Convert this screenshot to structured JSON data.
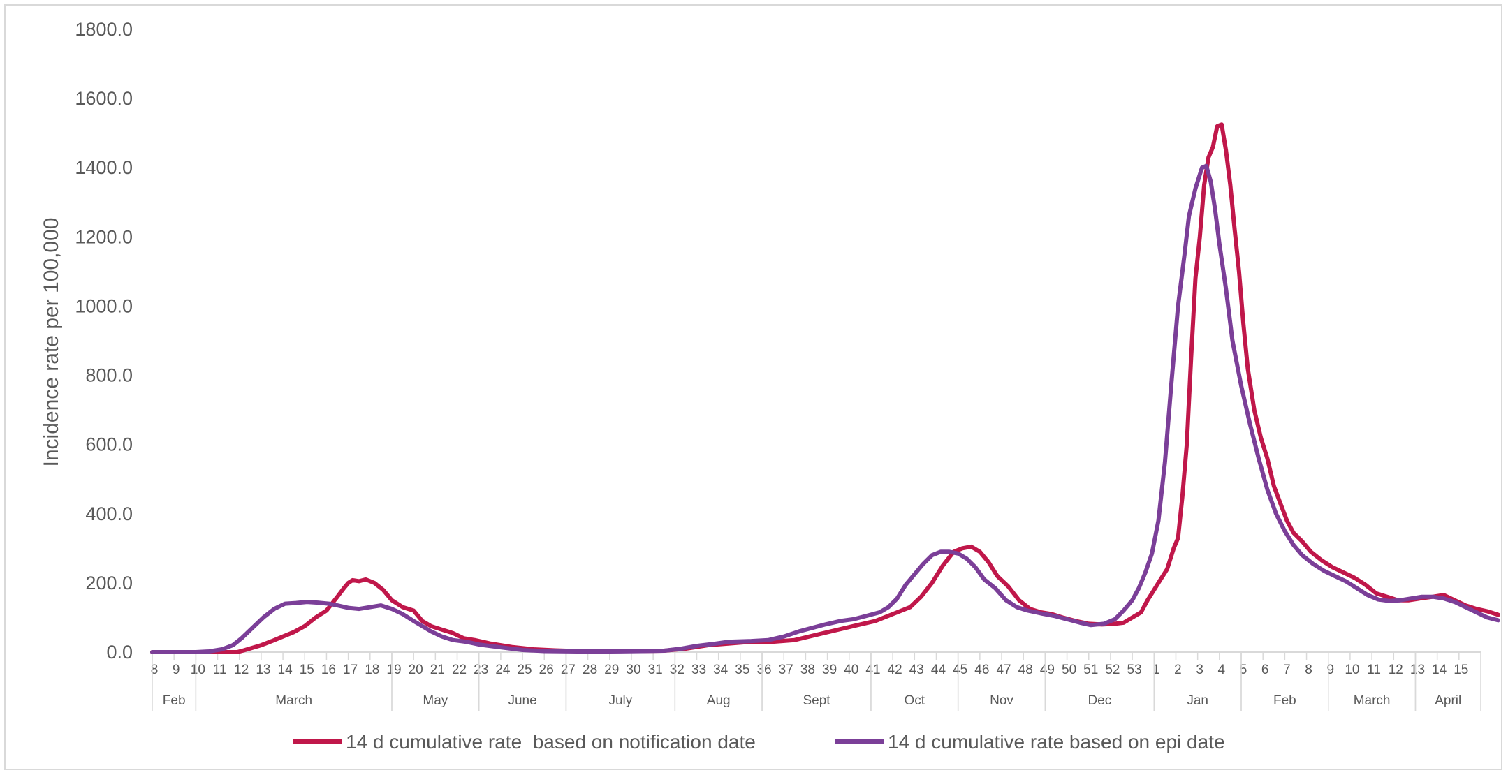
{
  "chart_data": {
    "type": "line",
    "title": "",
    "ylabel": "Incidence rate per 100,000",
    "xlabel": "",
    "ylim": [
      0,
      1800
    ],
    "yticks": [
      "0.0",
      "200.0",
      "400.0",
      "600.0",
      "800.0",
      "1000.0",
      "1200.0",
      "1400.0",
      "1600.0",
      "1800.0"
    ],
    "grid": false,
    "legend_position": "bottom",
    "x_weeks": [
      "8",
      "9",
      "10",
      "11",
      "12",
      "13",
      "14",
      "15",
      "16",
      "17",
      "18",
      "19",
      "20",
      "21",
      "22",
      "23",
      "24",
      "25",
      "26",
      "27",
      "28",
      "29",
      "30",
      "31",
      "32",
      "33",
      "34",
      "35",
      "36",
      "37",
      "38",
      "39",
      "40",
      "41",
      "42",
      "43",
      "44",
      "45",
      "46",
      "47",
      "48",
      "49",
      "50",
      "51",
      "52",
      "53",
      "1",
      "2",
      "3",
      "4",
      "5",
      "6",
      "7",
      "8",
      "9",
      "10",
      "11",
      "12",
      "13",
      "14",
      "15"
    ],
    "x_months": [
      {
        "label": "Feb",
        "start": 0,
        "end": 2
      },
      {
        "label": "March",
        "start": 2,
        "end": 11
      },
      {
        "label": "May",
        "start": 11,
        "end": 15
      },
      {
        "label": "June",
        "start": 15,
        "end": 19
      },
      {
        "label": "July",
        "start": 19,
        "end": 24
      },
      {
        "label": "Aug",
        "start": 24,
        "end": 28
      },
      {
        "label": "Sept",
        "start": 28,
        "end": 33
      },
      {
        "label": "Oct",
        "start": 33,
        "end": 37
      },
      {
        "label": "Nov",
        "start": 37,
        "end": 41
      },
      {
        "label": "Dec",
        "start": 41,
        "end": 46
      },
      {
        "label": "Jan",
        "start": 46,
        "end": 50
      },
      {
        "label": "Feb",
        "start": 50,
        "end": 54
      },
      {
        "label": "March",
        "start": 54,
        "end": 58
      },
      {
        "label": "April",
        "start": 58,
        "end": 61
      }
    ],
    "series": [
      {
        "name": "14 d cumulative rate  based on notification date",
        "color": "#c0174a",
        "points": [
          [
            0,
            0
          ],
          [
            2,
            0
          ],
          [
            3.9,
            0
          ],
          [
            4.2,
            5
          ],
          [
            5,
            20
          ],
          [
            5.5,
            32
          ],
          [
            6,
            45
          ],
          [
            6.5,
            58
          ],
          [
            7,
            75
          ],
          [
            7.5,
            100
          ],
          [
            8,
            120
          ],
          [
            8.5,
            160
          ],
          [
            8.8,
            185
          ],
          [
            9,
            200
          ],
          [
            9.2,
            208
          ],
          [
            9.5,
            205
          ],
          [
            9.8,
            210
          ],
          [
            10.2,
            200
          ],
          [
            10.6,
            180
          ],
          [
            11,
            150
          ],
          [
            11.5,
            130
          ],
          [
            12,
            120
          ],
          [
            12.4,
            90
          ],
          [
            12.8,
            75
          ],
          [
            13.3,
            65
          ],
          [
            13.8,
            55
          ],
          [
            14.3,
            40
          ],
          [
            14.8,
            35
          ],
          [
            15.5,
            25
          ],
          [
            16.5,
            15
          ],
          [
            17.5,
            8
          ],
          [
            18.5,
            5
          ],
          [
            19.5,
            3
          ],
          [
            20.5,
            3
          ],
          [
            22,
            3
          ],
          [
            23.5,
            4
          ],
          [
            24.5,
            10
          ],
          [
            25.5,
            20
          ],
          [
            26.5,
            25
          ],
          [
            27.5,
            30
          ],
          [
            28.5,
            30
          ],
          [
            29.5,
            35
          ],
          [
            30.5,
            50
          ],
          [
            31.5,
            65
          ],
          [
            32.5,
            80
          ],
          [
            33.2,
            90
          ],
          [
            34,
            110
          ],
          [
            34.8,
            130
          ],
          [
            35.3,
            160
          ],
          [
            35.8,
            200
          ],
          [
            36.3,
            250
          ],
          [
            36.8,
            290
          ],
          [
            37.2,
            300
          ],
          [
            37.6,
            305
          ],
          [
            38,
            290
          ],
          [
            38.4,
            260
          ],
          [
            38.8,
            220
          ],
          [
            39.3,
            190
          ],
          [
            39.8,
            150
          ],
          [
            40.3,
            125
          ],
          [
            40.8,
            115
          ],
          [
            41.3,
            110
          ],
          [
            41.8,
            100
          ],
          [
            42.4,
            90
          ],
          [
            43,
            82
          ],
          [
            43.6,
            80
          ],
          [
            44.2,
            82
          ],
          [
            44.6,
            85
          ],
          [
            45,
            100
          ],
          [
            45.4,
            115
          ],
          [
            45.7,
            150
          ],
          [
            46,
            180
          ],
          [
            46.3,
            210
          ],
          [
            46.6,
            240
          ],
          [
            46.9,
            300
          ],
          [
            47.1,
            330
          ],
          [
            47.3,
            450
          ],
          [
            47.5,
            600
          ],
          [
            47.7,
            850
          ],
          [
            47.9,
            1080
          ],
          [
            48.1,
            1200
          ],
          [
            48.3,
            1350
          ],
          [
            48.5,
            1430
          ],
          [
            48.7,
            1460
          ],
          [
            48.9,
            1520
          ],
          [
            49.1,
            1525
          ],
          [
            49.3,
            1450
          ],
          [
            49.5,
            1350
          ],
          [
            49.7,
            1220
          ],
          [
            49.9,
            1100
          ],
          [
            50.1,
            950
          ],
          [
            50.3,
            820
          ],
          [
            50.6,
            700
          ],
          [
            50.9,
            620
          ],
          [
            51.2,
            560
          ],
          [
            51.5,
            480
          ],
          [
            51.8,
            430
          ],
          [
            52.1,
            380
          ],
          [
            52.4,
            345
          ],
          [
            52.8,
            320
          ],
          [
            53.2,
            290
          ],
          [
            53.7,
            265
          ],
          [
            54.2,
            245
          ],
          [
            54.7,
            230
          ],
          [
            55.2,
            215
          ],
          [
            55.7,
            195
          ],
          [
            56.2,
            170
          ],
          [
            56.7,
            160
          ],
          [
            57.2,
            150
          ],
          [
            57.7,
            150
          ],
          [
            58.2,
            155
          ],
          [
            58.8,
            160
          ],
          [
            59.3,
            165
          ],
          [
            59.8,
            150
          ],
          [
            60.3,
            135
          ],
          [
            60.8,
            125
          ],
          [
            61.3,
            118
          ],
          [
            61.8,
            108
          ]
        ]
      },
      {
        "name": "14 d cumulative rate based on epi date",
        "color": "#7b3f98",
        "points": [
          [
            0,
            0
          ],
          [
            2,
            0
          ],
          [
            2.6,
            2
          ],
          [
            3.2,
            8
          ],
          [
            3.7,
            20
          ],
          [
            4.1,
            40
          ],
          [
            4.6,
            70
          ],
          [
            5.1,
            100
          ],
          [
            5.6,
            125
          ],
          [
            6.1,
            140
          ],
          [
            6.6,
            142
          ],
          [
            7.1,
            145
          ],
          [
            7.6,
            143
          ],
          [
            8.1,
            140
          ],
          [
            8.5,
            135
          ],
          [
            9,
            128
          ],
          [
            9.5,
            125
          ],
          [
            10,
            130
          ],
          [
            10.5,
            135
          ],
          [
            11,
            125
          ],
          [
            11.5,
            110
          ],
          [
            12,
            90
          ],
          [
            12.4,
            75
          ],
          [
            12.8,
            60
          ],
          [
            13.3,
            45
          ],
          [
            13.8,
            35
          ],
          [
            14.4,
            30
          ],
          [
            15,
            22
          ],
          [
            16,
            14
          ],
          [
            17,
            6
          ],
          [
            18,
            3
          ],
          [
            19.5,
            2
          ],
          [
            21,
            2
          ],
          [
            22.5,
            3
          ],
          [
            23.5,
            4
          ],
          [
            24.3,
            10
          ],
          [
            25,
            18
          ],
          [
            25.8,
            24
          ],
          [
            26.5,
            30
          ],
          [
            27.5,
            32
          ],
          [
            28.3,
            35
          ],
          [
            29,
            45
          ],
          [
            29.7,
            60
          ],
          [
            30.3,
            70
          ],
          [
            30.9,
            80
          ],
          [
            31.6,
            90
          ],
          [
            32.2,
            95
          ],
          [
            32.8,
            105
          ],
          [
            33.4,
            115
          ],
          [
            33.8,
            130
          ],
          [
            34.2,
            155
          ],
          [
            34.6,
            195
          ],
          [
            35,
            225
          ],
          [
            35.4,
            255
          ],
          [
            35.8,
            280
          ],
          [
            36.2,
            290
          ],
          [
            36.6,
            290
          ],
          [
            37,
            285
          ],
          [
            37.4,
            270
          ],
          [
            37.8,
            245
          ],
          [
            38.2,
            210
          ],
          [
            38.7,
            185
          ],
          [
            39.2,
            150
          ],
          [
            39.7,
            130
          ],
          [
            40.2,
            120
          ],
          [
            40.8,
            112
          ],
          [
            41.4,
            105
          ],
          [
            42,
            95
          ],
          [
            42.6,
            85
          ],
          [
            43.1,
            78
          ],
          [
            43.7,
            82
          ],
          [
            44.2,
            95
          ],
          [
            44.6,
            120
          ],
          [
            45,
            150
          ],
          [
            45.3,
            185
          ],
          [
            45.6,
            230
          ],
          [
            45.9,
            285
          ],
          [
            46.2,
            380
          ],
          [
            46.5,
            550
          ],
          [
            46.8,
            780
          ],
          [
            47.1,
            1000
          ],
          [
            47.4,
            1150
          ],
          [
            47.6,
            1260
          ],
          [
            47.9,
            1340
          ],
          [
            48.2,
            1400
          ],
          [
            48.4,
            1405
          ],
          [
            48.6,
            1360
          ],
          [
            48.8,
            1280
          ],
          [
            49,
            1180
          ],
          [
            49.3,
            1050
          ],
          [
            49.6,
            900
          ],
          [
            50,
            770
          ],
          [
            50.4,
            660
          ],
          [
            50.8,
            560
          ],
          [
            51.2,
            470
          ],
          [
            51.6,
            400
          ],
          [
            52,
            350
          ],
          [
            52.4,
            310
          ],
          [
            52.8,
            280
          ],
          [
            53.3,
            255
          ],
          [
            53.8,
            235
          ],
          [
            54.3,
            220
          ],
          [
            54.8,
            205
          ],
          [
            55.3,
            185
          ],
          [
            55.8,
            165
          ],
          [
            56.3,
            152
          ],
          [
            56.8,
            148
          ],
          [
            57.3,
            150
          ],
          [
            57.8,
            155
          ],
          [
            58.3,
            160
          ],
          [
            58.8,
            160
          ],
          [
            59.3,
            155
          ],
          [
            59.8,
            145
          ],
          [
            60.3,
            130
          ],
          [
            60.8,
            115
          ],
          [
            61.3,
            100
          ],
          [
            61.8,
            92
          ]
        ]
      }
    ]
  }
}
